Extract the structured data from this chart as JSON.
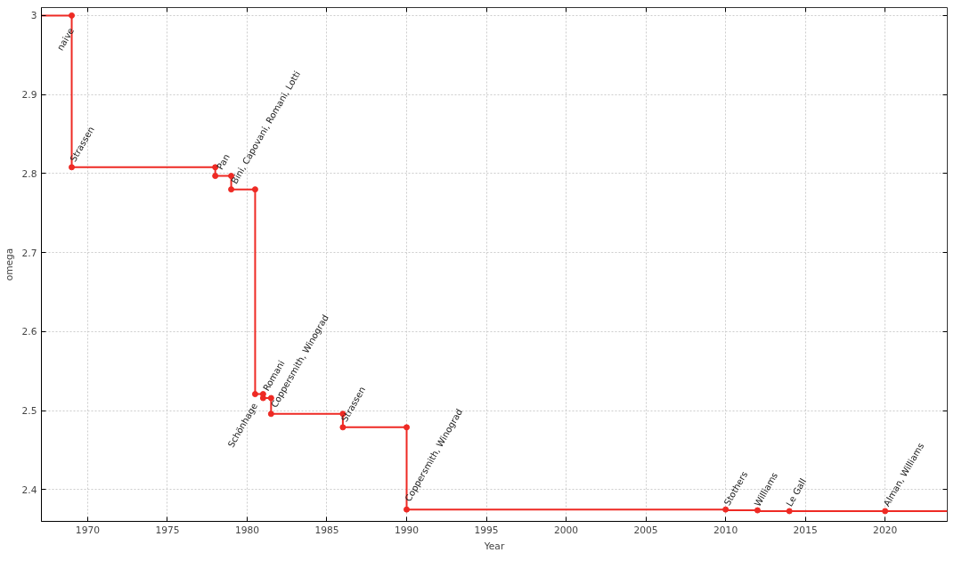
{
  "chart_data": {
    "type": "line",
    "xlabel": "Year",
    "ylabel": "omega",
    "xlim": [
      1967.1,
      2023.9
    ],
    "ylim": [
      2.36,
      3.01
    ],
    "xticks": [
      1970,
      1975,
      1980,
      1985,
      1990,
      1995,
      2000,
      2005,
      2010,
      2015,
      2020
    ],
    "yticks": [
      2.4,
      2.5,
      2.6,
      2.7,
      2.8,
      2.9,
      3
    ],
    "grid": true,
    "line_style": "solid",
    "series": [
      {
        "marker": "none",
        "color": "#ee2a24",
        "x": [
          1967.1,
          1969,
          1969,
          1978,
          1978,
          1979,
          1979,
          1980.5,
          1980.5,
          1981,
          1981,
          1981.5,
          1981.5,
          1986,
          1986,
          1990,
          1990,
          2010,
          2010,
          2012,
          2012,
          2023.9
        ],
        "values": [
          3,
          3,
          2.808,
          2.808,
          2.797,
          2.797,
          2.78,
          2.78,
          2.521,
          2.521,
          2.516,
          2.516,
          2.496,
          2.496,
          2.479,
          2.479,
          2.375,
          2.375,
          2.374,
          2.374,
          2.373,
          2.373
        ]
      },
      {
        "type": "scatter",
        "marker": "circle",
        "color": "#ee2a24",
        "x": [
          1969,
          1969,
          1978,
          1978,
          1979,
          1979,
          1980.5,
          1980.5,
          1981,
          1981,
          1981.5,
          1981.5,
          1986,
          1986,
          1990,
          1990,
          2010,
          2012,
          2014,
          2020
        ],
        "values": [
          3,
          2.808,
          2.808,
          2.797,
          2.797,
          2.78,
          2.78,
          2.521,
          2.521,
          2.516,
          2.516,
          2.496,
          2.496,
          2.479,
          2.479,
          2.375,
          2.375,
          2.374,
          2.373,
          2.373
        ]
      }
    ],
    "annotations": [
      {
        "text": "naive",
        "x": 1969,
        "y": 3
      },
      {
        "text": "Strassen",
        "x": 1969.2,
        "y": 2.813
      },
      {
        "text": "Pan",
        "x": 1978.4,
        "y": 2.803
      },
      {
        "text": "Bini, Capovani, Romani, Lotti",
        "x": 1979.3,
        "y": 2.785
      },
      {
        "text": "Schönhage",
        "x": 1980.5,
        "y": 2.521
      },
      {
        "text": "Romani",
        "x": 1981.3,
        "y": 2.523
      },
      {
        "text": "Coppersmith, Winograd",
        "x": 1981.8,
        "y": 2.502
      },
      {
        "text": "Strassen",
        "x": 1986.2,
        "y": 2.484
      },
      {
        "text": "Coppersmith, Winograd",
        "x": 1990.2,
        "y": 2.383
      },
      {
        "text": "Stothers",
        "x": 2010.2,
        "y": 2.378
      },
      {
        "text": "Williams",
        "x": 2012.1,
        "y": 2.377
      },
      {
        "text": "Le Gall",
        "x": 2014.1,
        "y": 2.377
      },
      {
        "text": "Alman, Williams",
        "x": 2020.2,
        "y": 2.377
      }
    ]
  }
}
